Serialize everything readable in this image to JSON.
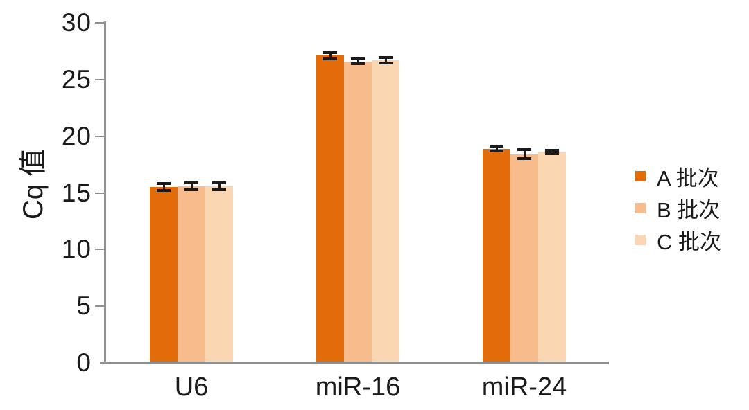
{
  "chart_data": {
    "type": "bar",
    "title": "",
    "xlabel": "",
    "ylabel": "Cq 值",
    "ylim": [
      0,
      30
    ],
    "yticks": [
      0,
      5,
      10,
      15,
      20,
      25,
      30
    ],
    "grid": false,
    "legend_position": "right",
    "categories": [
      "U6",
      "miR-16",
      "miR-24"
    ],
    "series": [
      {
        "name": "A 批次",
        "color": "#E36C0A",
        "values": [
          15.5,
          27.1,
          18.9
        ],
        "errors": [
          0.3,
          0.3,
          0.2
        ]
      },
      {
        "name": "B 批次",
        "color": "#F8BC8C",
        "values": [
          15.6,
          26.6,
          18.4
        ],
        "errors": [
          0.3,
          0.2,
          0.4
        ]
      },
      {
        "name": "C 批次",
        "color": "#FBD6B2",
        "values": [
          15.6,
          26.7,
          18.6
        ],
        "errors": [
          0.3,
          0.25,
          0.15
        ]
      }
    ],
    "error_bar_color": "#1a1a1a",
    "axis_color": "#8F8F8F",
    "text_color": "#1a1a1a"
  }
}
